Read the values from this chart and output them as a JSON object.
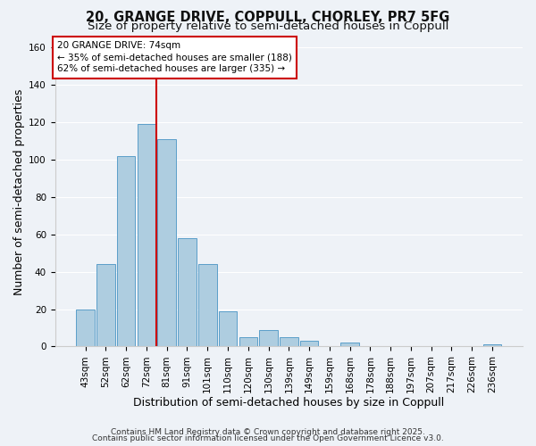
{
  "title": "20, GRANGE DRIVE, COPPULL, CHORLEY, PR7 5FG",
  "subtitle": "Size of property relative to semi-detached houses in Coppull",
  "xlabel": "Distribution of semi-detached houses by size in Coppull",
  "ylabel": "Number of semi-detached properties",
  "bar_labels": [
    "43sqm",
    "52sqm",
    "62sqm",
    "72sqm",
    "81sqm",
    "91sqm",
    "101sqm",
    "110sqm",
    "120sqm",
    "130sqm",
    "139sqm",
    "149sqm",
    "159sqm",
    "168sqm",
    "178sqm",
    "188sqm",
    "197sqm",
    "207sqm",
    "217sqm",
    "226sqm",
    "236sqm"
  ],
  "bar_values": [
    20,
    44,
    102,
    119,
    111,
    58,
    44,
    19,
    5,
    9,
    5,
    3,
    0,
    2,
    0,
    0,
    0,
    0,
    0,
    0,
    1
  ],
  "bar_color": "#aecde0",
  "bar_edge_color": "#5b9ec9",
  "vline_index": 3,
  "vline_color": "#cc0000",
  "annotation_title": "20 GRANGE DRIVE: 74sqm",
  "annotation_line1": "← 35% of semi-detached houses are smaller (188)",
  "annotation_line2": "62% of semi-detached houses are larger (335) →",
  "annotation_box_color": "#ffffff",
  "annotation_box_edge": "#cc0000",
  "ylim": [
    0,
    165
  ],
  "yticks": [
    0,
    20,
    40,
    60,
    80,
    100,
    120,
    140,
    160
  ],
  "footer1": "Contains HM Land Registry data © Crown copyright and database right 2025.",
  "footer2": "Contains public sector information licensed under the Open Government Licence v3.0.",
  "bg_color": "#eef2f7",
  "grid_color": "#ffffff",
  "title_fontsize": 10.5,
  "subtitle_fontsize": 9.5,
  "tick_fontsize": 7.5,
  "label_fontsize": 9,
  "footer_fontsize": 6.5
}
